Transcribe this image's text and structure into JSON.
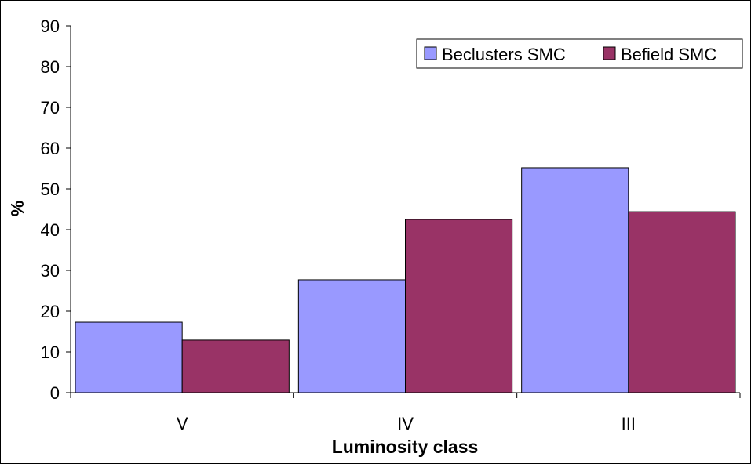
{
  "chart_data": {
    "type": "bar",
    "categories": [
      "V",
      "IV",
      "III"
    ],
    "series": [
      {
        "name": "Beclusters SMC",
        "color": "#9999ff",
        "values": [
          17.3,
          27.7,
          55.2
        ]
      },
      {
        "name": "Befield SMC",
        "color": "#993366",
        "values": [
          12.9,
          42.5,
          44.4
        ]
      }
    ],
    "xlabel": "Luminosity class",
    "ylabel": "%",
    "ylim": [
      0,
      90
    ],
    "yticks": [
      0,
      10,
      20,
      30,
      40,
      50,
      60,
      70,
      80,
      90
    ],
    "grid": false,
    "legend_position": "top-right"
  }
}
